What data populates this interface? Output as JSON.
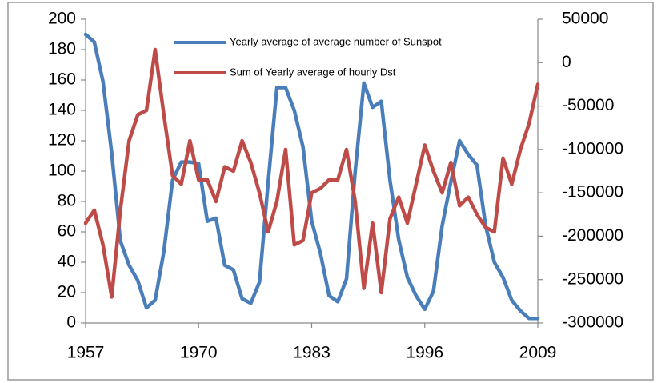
{
  "chart_data": {
    "type": "line",
    "x": [
      1957,
      1958,
      1959,
      1960,
      1961,
      1962,
      1963,
      1964,
      1965,
      1966,
      1967,
      1968,
      1969,
      1970,
      1971,
      1972,
      1973,
      1974,
      1975,
      1976,
      1977,
      1978,
      1979,
      1980,
      1981,
      1982,
      1983,
      1984,
      1985,
      1986,
      1987,
      1988,
      1989,
      1990,
      1991,
      1992,
      1993,
      1994,
      1995,
      1996,
      1997,
      1998,
      1999,
      2000,
      2001,
      2002,
      2003,
      2004,
      2005,
      2006,
      2007,
      2008,
      2009
    ],
    "series": [
      {
        "name": "Yearly average of average number of Sunspot",
        "color": "#4a7ebb",
        "values": [
          190,
          185,
          159,
          112,
          54,
          38,
          28,
          10,
          15,
          47,
          94,
          106,
          106,
          105,
          67,
          69,
          38,
          35,
          16,
          13,
          27,
          93,
          155,
          155,
          140,
          116,
          67,
          46,
          18,
          14,
          29,
          100,
          158,
          142,
          146,
          94,
          55,
          30,
          18,
          9,
          21,
          64,
          93,
          120,
          111,
          104,
          64,
          40,
          30,
          15,
          8,
          3,
          3
        ]
      },
      {
        "name": "Sum of Yearly average of hourly Dst",
        "color": "#be4b48",
        "axis": "y2",
        "values": [
          -185000,
          -170000,
          -210000,
          -270000,
          -170000,
          -90000,
          -60000,
          -55000,
          15000,
          -60000,
          -130000,
          -140000,
          -90000,
          -135000,
          -135000,
          -160000,
          -120000,
          -125000,
          -90000,
          -115000,
          -150000,
          -195000,
          -160000,
          -100000,
          -210000,
          -205000,
          -150000,
          -145000,
          -135000,
          -135000,
          -100000,
          -160000,
          -260000,
          -185000,
          -265000,
          -180000,
          -155000,
          -185000,
          -140000,
          -95000,
          -125000,
          -150000,
          -115000,
          -165000,
          -155000,
          -175000,
          -190000,
          -195000,
          -110000,
          -140000,
          -100000,
          -70000,
          -25000
        ]
      }
    ],
    "xlim": [
      1957,
      2009
    ],
    "xticks": [
      1957,
      1970,
      1983,
      1996,
      2009
    ],
    "ylim": [
      0,
      200
    ],
    "yticks": [
      0,
      20,
      40,
      60,
      80,
      100,
      120,
      140,
      160,
      180,
      200
    ],
    "y2lim": [
      -300000,
      50000
    ],
    "y2ticks": [
      -300000,
      -250000,
      -200000,
      -150000,
      -100000,
      -50000,
      0,
      50000
    ],
    "legend": "top-right",
    "grid": false
  }
}
